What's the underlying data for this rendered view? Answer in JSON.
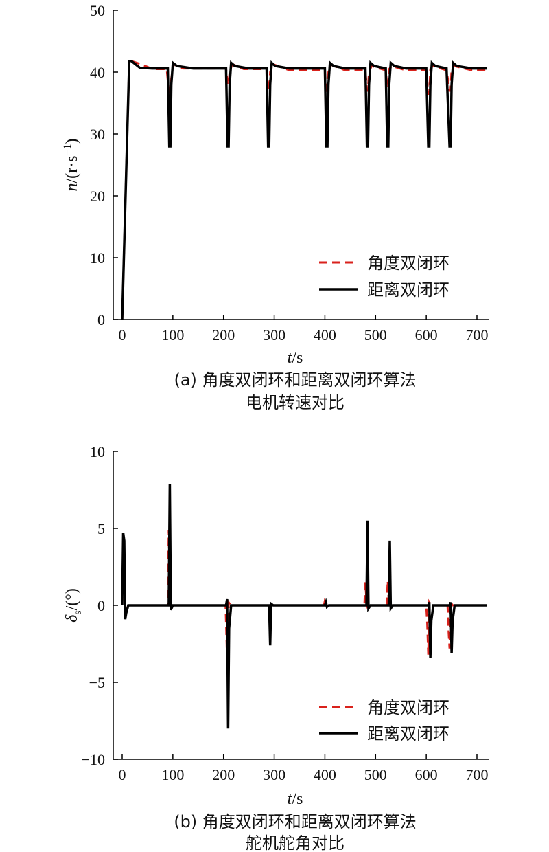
{
  "chart_data": [
    {
      "type": "line",
      "panel": "a",
      "caption_line1": "(a) 角度双闭环和距离双闭环算法",
      "caption_line2": "电机转速对比",
      "xlabel_var": "t",
      "xlabel_unit": "/s",
      "ylabel_var": "n",
      "ylabel_unit": "/(r·s",
      "ylabel_sup": "−1",
      "ylabel_close": ")",
      "xlim": [
        0,
        720
      ],
      "ylim": [
        0,
        50
      ],
      "xticks": [
        0,
        100,
        200,
        300,
        400,
        500,
        600,
        700
      ],
      "yticks": [
        0,
        10,
        20,
        30,
        40,
        50
      ],
      "legend_position": "lower-right",
      "series": [
        {
          "name": "角度双闭环",
          "color": "#d9221c",
          "dash": true,
          "x": [
            0,
            14,
            18,
            40,
            60,
            88,
            93,
            95,
            97,
            102,
            120,
            205,
            208,
            210,
            212,
            217,
            240,
            285,
            288,
            290,
            292,
            297,
            330,
            400,
            403,
            405,
            407,
            412,
            440,
            480,
            483,
            485,
            487,
            492,
            520,
            523,
            525,
            527,
            532,
            560,
            600,
            604,
            606,
            608,
            613,
            640,
            646,
            648,
            650,
            655,
            690,
            720
          ],
          "y": [
            0,
            41.8,
            41.8,
            41.2,
            40.5,
            40.5,
            36,
            34,
            39,
            41.3,
            40.6,
            40.6,
            38,
            38,
            40,
            41.3,
            40.5,
            40.5,
            37,
            37,
            40,
            41.3,
            40.3,
            40.3,
            36.5,
            36.5,
            40,
            41.2,
            40.3,
            40.3,
            37,
            37,
            40,
            41,
            40.3,
            37.5,
            37.5,
            40.5,
            41,
            40.3,
            40.3,
            36.5,
            36.5,
            40.5,
            41,
            40.3,
            37,
            37,
            40.5,
            41,
            40.3,
            40.3
          ]
        },
        {
          "name": "距离双闭环",
          "color": "#000000",
          "dash": false,
          "x": [
            0,
            14,
            18,
            35,
            60,
            90,
            93,
            95,
            97,
            100,
            108,
            140,
            205,
            208,
            210,
            212,
            215,
            222,
            250,
            285,
            288,
            290,
            292,
            295,
            302,
            330,
            400,
            403,
            405,
            407,
            410,
            417,
            440,
            480,
            483,
            485,
            487,
            490,
            497,
            520,
            523,
            525,
            527,
            530,
            537,
            560,
            600,
            604,
            606,
            608,
            611,
            618,
            640,
            646,
            648,
            650,
            653,
            660,
            690,
            720
          ],
          "y": [
            0,
            41.8,
            41.8,
            40.7,
            40.6,
            40.6,
            28,
            28,
            38,
            41.5,
            41,
            40.6,
            40.6,
            28,
            28,
            38,
            41.5,
            41,
            40.6,
            40.6,
            28,
            28,
            38,
            41.5,
            41,
            40.6,
            40.6,
            28,
            28,
            38,
            41.5,
            41,
            40.6,
            40.6,
            28,
            28,
            38,
            41.5,
            41,
            40.6,
            28,
            28,
            38,
            41.5,
            41,
            40.6,
            40.6,
            28,
            28,
            38,
            41.5,
            41,
            40.6,
            28,
            28,
            38,
            41.5,
            41,
            40.6,
            40.6
          ]
        }
      ]
    },
    {
      "type": "line",
      "panel": "b",
      "caption_line1": "(b) 角度双闭环和距离双闭环算法",
      "caption_line2": "舵机舵角对比",
      "xlabel_var": "t",
      "xlabel_unit": "/s",
      "ylabel_var": "δ",
      "ylabel_sub": "s",
      "ylabel_unit": "/(°)",
      "xlim": [
        0,
        720
      ],
      "ylim": [
        -10,
        10
      ],
      "xticks": [
        0,
        100,
        200,
        300,
        400,
        500,
        600,
        700
      ],
      "ytick_values": [
        -10,
        -5,
        0,
        5,
        10
      ],
      "ytick_labels": [
        "−10",
        "−5",
        "0",
        "5",
        "10"
      ],
      "legend_position": "lower-right",
      "series": [
        {
          "name": "角度双闭环",
          "color": "#d9221c",
          "dash": true,
          "x": [
            0,
            2,
            4,
            6,
            8,
            12,
            90,
            92,
            94,
            96,
            100,
            204,
            206,
            208,
            210,
            214,
            290,
            292,
            294,
            298,
            398,
            400,
            402,
            404,
            408,
            478,
            480,
            482,
            484,
            488,
            522,
            524,
            526,
            528,
            532,
            600,
            602,
            604,
            606,
            610,
            642,
            644,
            646,
            648,
            652,
            720
          ],
          "y": [
            0,
            3.8,
            3.5,
            -0.6,
            -0.4,
            0,
            0,
            4.9,
            0.7,
            -0.1,
            0,
            0,
            -2.2,
            -4.6,
            0.2,
            0,
            0,
            -2.2,
            0.1,
            0,
            0,
            0.3,
            0.2,
            -0.1,
            0,
            0,
            1.5,
            0.3,
            -0.1,
            0,
            0,
            1.6,
            0.3,
            -0.1,
            0,
            0,
            -1.2,
            -3.2,
            0.2,
            0,
            0,
            -1.6,
            -2.8,
            0.2,
            0,
            0
          ]
        },
        {
          "name": "距离双闭环",
          "color": "#000000",
          "dash": false,
          "x": [
            0,
            2,
            4,
            6,
            8,
            12,
            92,
            94,
            96,
            100,
            205,
            207,
            209,
            211,
            215,
            290,
            292,
            294,
            298,
            400,
            402,
            404,
            408,
            482,
            484,
            486,
            490,
            526,
            528,
            530,
            534,
            604,
            606,
            608,
            610,
            614,
            646,
            648,
            650,
            652,
            656,
            720
          ],
          "y": [
            0,
            4.7,
            4.2,
            -0.9,
            -0.5,
            0,
            0,
            7.9,
            -0.3,
            0,
            0,
            0.4,
            -8,
            -1.5,
            0,
            0,
            -2.6,
            0.1,
            0,
            0,
            0.2,
            -0.1,
            0,
            0,
            5.5,
            -0.2,
            0,
            0,
            4.2,
            -0.2,
            0,
            0,
            0.2,
            -3.4,
            -1,
            0,
            0,
            0.2,
            -3.1,
            -1,
            0,
            0
          ]
        }
      ]
    }
  ]
}
